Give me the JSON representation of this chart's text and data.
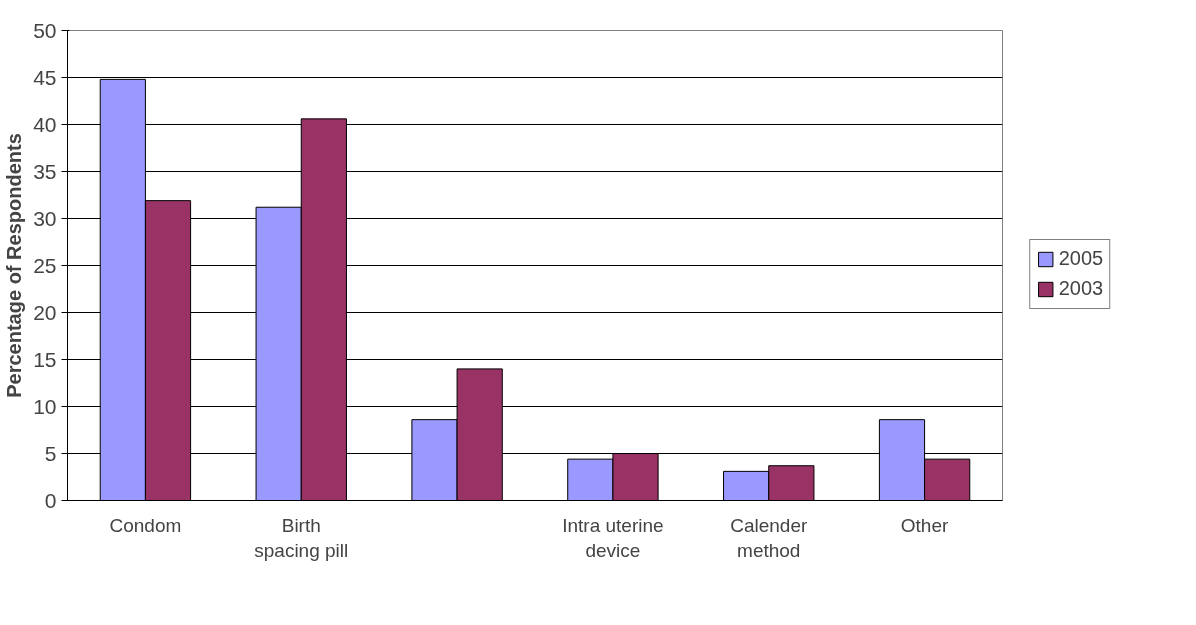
{
  "chart_data": {
    "type": "bar",
    "ylabel": "Percentage of Respondents",
    "categories": [
      "Condom",
      "Birth\nspacing pill",
      null,
      "Intra uterine\ndevice",
      "Calender\nmethod",
      "Other"
    ],
    "series": [
      {
        "name": "2005",
        "color": "#9999ff",
        "values": [
          44.8,
          31.2,
          8.6,
          4.4,
          3.1,
          8.6
        ]
      },
      {
        "name": "2003",
        "color": "#993366",
        "values": [
          31.9,
          40.6,
          14.0,
          5.0,
          3.7,
          4.4
        ]
      }
    ],
    "ylim": [
      0,
      50
    ],
    "yticks": [
      0,
      5,
      10,
      15,
      20,
      25,
      30,
      35,
      40,
      45,
      50
    ],
    "grid": "y",
    "legend": "right"
  }
}
